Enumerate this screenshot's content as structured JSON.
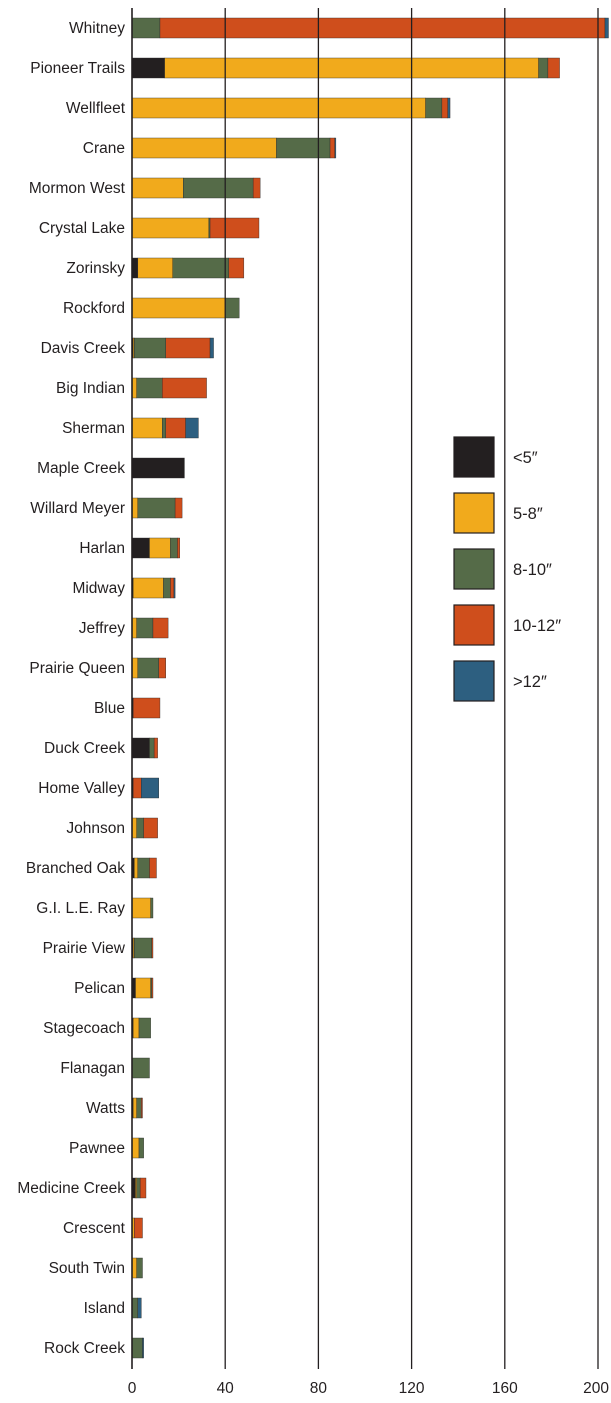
{
  "chart_data": {
    "type": "bar",
    "orientation": "horizontal",
    "stacked": true,
    "categories": [
      "Whitney",
      "Pioneer Trails",
      "Wellfleet",
      "Crane",
      "Mormon West",
      "Crystal Lake",
      "Zorinsky",
      "Rockford",
      "Davis Creek",
      "Big Indian",
      "Sherman",
      "Maple Creek",
      "Willard Meyer",
      "Harlan",
      "Midway",
      "Jeffrey",
      "Prairie Queen",
      "Blue",
      "Duck Creek",
      "Home Valley",
      "Johnson",
      "Branched Oak",
      "G.I. L.E. Ray",
      "Prairie View",
      "Pelican",
      "Stagecoach",
      "Flanagan",
      "Watts",
      "Pawnee",
      "Medicine Creek",
      "Crescent",
      "South Twin",
      "Island",
      "Rock Creek"
    ],
    "series": [
      {
        "name": "<5″",
        "color": "#231f20",
        "values": [
          0,
          14,
          0,
          0,
          0,
          0,
          2.5,
          0,
          0.5,
          0,
          0,
          22.5,
          0,
          7.5,
          0.5,
          0,
          0,
          0.5,
          7.5,
          0.5,
          0,
          1,
          0,
          0.5,
          1.5,
          0.5,
          0,
          0.5,
          0,
          1.5,
          0,
          0,
          0,
          0
        ]
      },
      {
        "name": "5-8″",
        "color": "#f1aa1c",
        "values": [
          0,
          160.5,
          126,
          62,
          22,
          33,
          15,
          40,
          0.5,
          2,
          13,
          0,
          2.5,
          9,
          13,
          2,
          2.5,
          0,
          0,
          0,
          2,
          1.5,
          8,
          0.5,
          6.5,
          2.5,
          0,
          1.5,
          3,
          0.5,
          1,
          2,
          0,
          0
        ]
      },
      {
        "name": "8-10″",
        "color": "#556b48",
        "values": [
          12,
          4,
          7,
          23,
          30,
          0.5,
          24,
          6,
          13.5,
          11,
          1.5,
          0,
          16,
          3,
          3,
          7,
          9,
          0,
          2,
          0,
          3,
          5,
          1,
          7.5,
          0.5,
          5,
          7.5,
          2,
          2,
          1.5,
          0,
          2.5,
          2.5,
          4.5
        ]
      },
      {
        "name": "10-12″",
        "color": "#cf4e1c",
        "values": [
          191,
          5,
          2.5,
          2,
          3,
          21,
          6.5,
          0,
          19,
          19,
          8.5,
          0,
          3,
          1,
          1.5,
          6.5,
          3,
          11.5,
          1.5,
          3.5,
          6,
          3,
          0,
          0.5,
          0.5,
          0,
          0,
          0.5,
          0,
          2.5,
          3.5,
          0,
          0,
          0
        ]
      },
      {
        "name": ">12″",
        "color": "#2d5f80",
        "values": [
          1.5,
          0,
          1,
          0.5,
          0,
          0,
          0,
          0,
          1.5,
          0,
          5.5,
          0,
          0,
          0,
          0.5,
          0,
          0,
          0,
          0,
          7.5,
          0,
          0,
          0,
          0,
          0,
          0,
          0,
          0,
          0,
          0,
          0,
          0,
          1.5,
          0.5
        ]
      }
    ],
    "xticks": [
      0,
      40,
      80,
      120,
      160,
      200
    ],
    "xlim": [
      0,
      200
    ],
    "title": "",
    "xlabel": "",
    "ylabel": "",
    "grid": "vertical",
    "legend": {
      "placement": "right",
      "entries": [
        "<5″",
        "5-8″",
        "8-10″",
        "10-12″",
        ">12″"
      ]
    }
  }
}
